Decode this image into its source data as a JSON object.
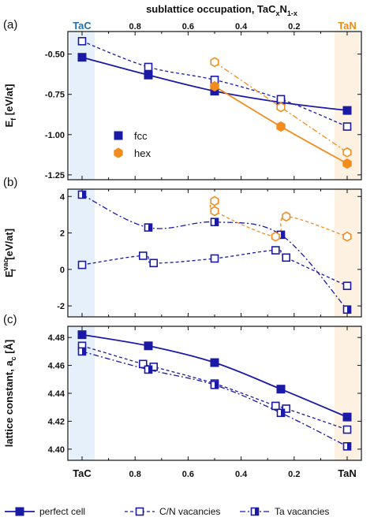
{
  "chart_data": {
    "type": "scatter",
    "top_axis": {
      "label_main": "sublattice occupation, TaC",
      "label_sub1": "x",
      "label_mid": "N",
      "label_sub2": "1-x",
      "ticks": [
        "0.8",
        "0.6",
        "0.4",
        "0.2"
      ],
      "tick_values": [
        0.8,
        0.6,
        0.4,
        0.2
      ],
      "end_labels": {
        "left": "TaC",
        "right": "TaN"
      },
      "xlim": [
        1.0,
        0.0
      ]
    },
    "bottom_axis": {
      "ticks": [
        "TaC",
        "0.8",
        "0.6",
        "0.4",
        "0.2",
        "TaN"
      ],
      "tick_values": [
        1.0,
        0.8,
        0.6,
        0.4,
        0.2,
        0.0
      ]
    },
    "colors": {
      "fcc": "#1a1aa6",
      "hex": "#f28c1e",
      "tac_band": "#e6f0fa",
      "tan_band": "#fdf1e2",
      "tac_label": "#1f6fb0",
      "tan_label": "#ef8a17"
    },
    "panels": [
      {
        "label": "(a)",
        "ylabel_main": "E",
        "ylabel_sub": "f",
        "ylabel_rest": " [eV/at]",
        "ylim": [
          -1.28,
          -0.36
        ],
        "yticks": [
          "-0.50",
          "-0.75",
          "-1.00",
          "-1.25"
        ],
        "ytick_values": [
          -0.5,
          -0.75,
          -1.0,
          -1.25
        ],
        "legend": [
          {
            "name": "fcc",
            "marker": "square"
          },
          {
            "name": "hex",
            "marker": "hexagon"
          }
        ],
        "series": [
          {
            "name": "fcc perfect",
            "style": "solid",
            "marker": "filled-square",
            "color": "fcc",
            "x": [
              1.0,
              0.75,
              0.5,
              0.25,
              0.0
            ],
            "y": [
              -0.52,
              -0.63,
              -0.73,
              -0.8,
              -0.85
            ]
          },
          {
            "name": "fcc C/N vacancies",
            "style": "dashed",
            "marker": "open-square",
            "color": "fcc",
            "x": [
              1.0,
              0.75,
              0.5,
              0.25,
              0.0
            ],
            "y": [
              -0.42,
              -0.58,
              -0.66,
              -0.78,
              -0.95
            ]
          },
          {
            "name": "hex perfect",
            "style": "solid",
            "marker": "filled-hexagon",
            "color": "hex",
            "x": [
              0.5,
              0.25,
              0.0
            ],
            "y": [
              -0.7,
              -0.95,
              -1.18
            ]
          },
          {
            "name": "hex vacancies",
            "style": "dashdot",
            "marker": "open-hexagon",
            "color": "hex",
            "x": [
              0.5,
              0.25,
              0.0
            ],
            "y": [
              -0.55,
              -0.83,
              -1.11
            ]
          }
        ]
      },
      {
        "label": "(b)",
        "ylabel_main": "E",
        "ylabel_sub": "f",
        "ylabel_sup": "vac",
        "ylabel_rest": " [eV/at]",
        "ylim": [
          -2.6,
          4.4
        ],
        "yticks": [
          "4",
          "2",
          "0",
          "-2"
        ],
        "ytick_values": [
          4,
          2,
          0,
          -2
        ],
        "series": [
          {
            "name": "fcc Ta vacancies",
            "style": "dashdot",
            "marker": "half-square",
            "color": "fcc",
            "x": [
              1.0,
              0.75,
              0.5,
              0.25,
              0.0
            ],
            "y": [
              4.1,
              2.3,
              2.6,
              1.9,
              -2.2
            ]
          },
          {
            "name": "fcc C/N vacancies",
            "style": "dashed",
            "marker": "open-square",
            "color": "fcc",
            "x": [
              1.0,
              0.77,
              0.73,
              0.5,
              0.27,
              0.23,
              0.0
            ],
            "y": [
              0.25,
              0.75,
              0.35,
              0.6,
              1.05,
              0.65,
              -0.9
            ]
          },
          {
            "name": "hex vacancies",
            "style": "dashed",
            "marker": "open-hexagon",
            "color": "hex",
            "x": [
              0.5,
              0.5,
              0.27,
              0.23,
              0.0
            ],
            "y": [
              3.75,
              3.2,
              1.8,
              2.9,
              1.8
            ]
          }
        ]
      },
      {
        "label": "(c)",
        "ylabel_main": "lattice constant, a",
        "ylabel_sub": "c",
        "ylabel_rest": " [Å]",
        "ylim": [
          4.392,
          4.488
        ],
        "yticks": [
          "4.48",
          "4.46",
          "4.44",
          "4.42",
          "4.40"
        ],
        "ytick_values": [
          4.48,
          4.46,
          4.44,
          4.42,
          4.4
        ],
        "series": [
          {
            "name": "perfect cell",
            "style": "solid",
            "marker": "filled-square",
            "color": "fcc",
            "x": [
              1.0,
              0.75,
              0.5,
              0.25,
              0.0
            ],
            "y": [
              4.482,
              4.474,
              4.462,
              4.443,
              4.423
            ]
          },
          {
            "name": "C/N vacancies",
            "style": "dashed",
            "marker": "open-square",
            "color": "fcc",
            "x": [
              1.0,
              0.77,
              0.73,
              0.5,
              0.27,
              0.23,
              0.0
            ],
            "y": [
              4.474,
              4.461,
              4.459,
              4.447,
              4.431,
              4.429,
              4.414
            ]
          },
          {
            "name": "Ta vacancies",
            "style": "dashdot",
            "marker": "half-square",
            "color": "fcc",
            "x": [
              1.0,
              0.75,
              0.5,
              0.25,
              0.0
            ],
            "y": [
              4.47,
              4.457,
              4.446,
              4.426,
              4.402
            ]
          }
        ]
      }
    ],
    "bottom_legend": [
      {
        "name": "perfect cell",
        "style": "solid",
        "marker": "filled-square"
      },
      {
        "name": "C/N vacancies",
        "style": "dashed",
        "marker": "open-square"
      },
      {
        "name": "Ta vacancies",
        "style": "dashdot",
        "marker": "half-square"
      }
    ]
  }
}
